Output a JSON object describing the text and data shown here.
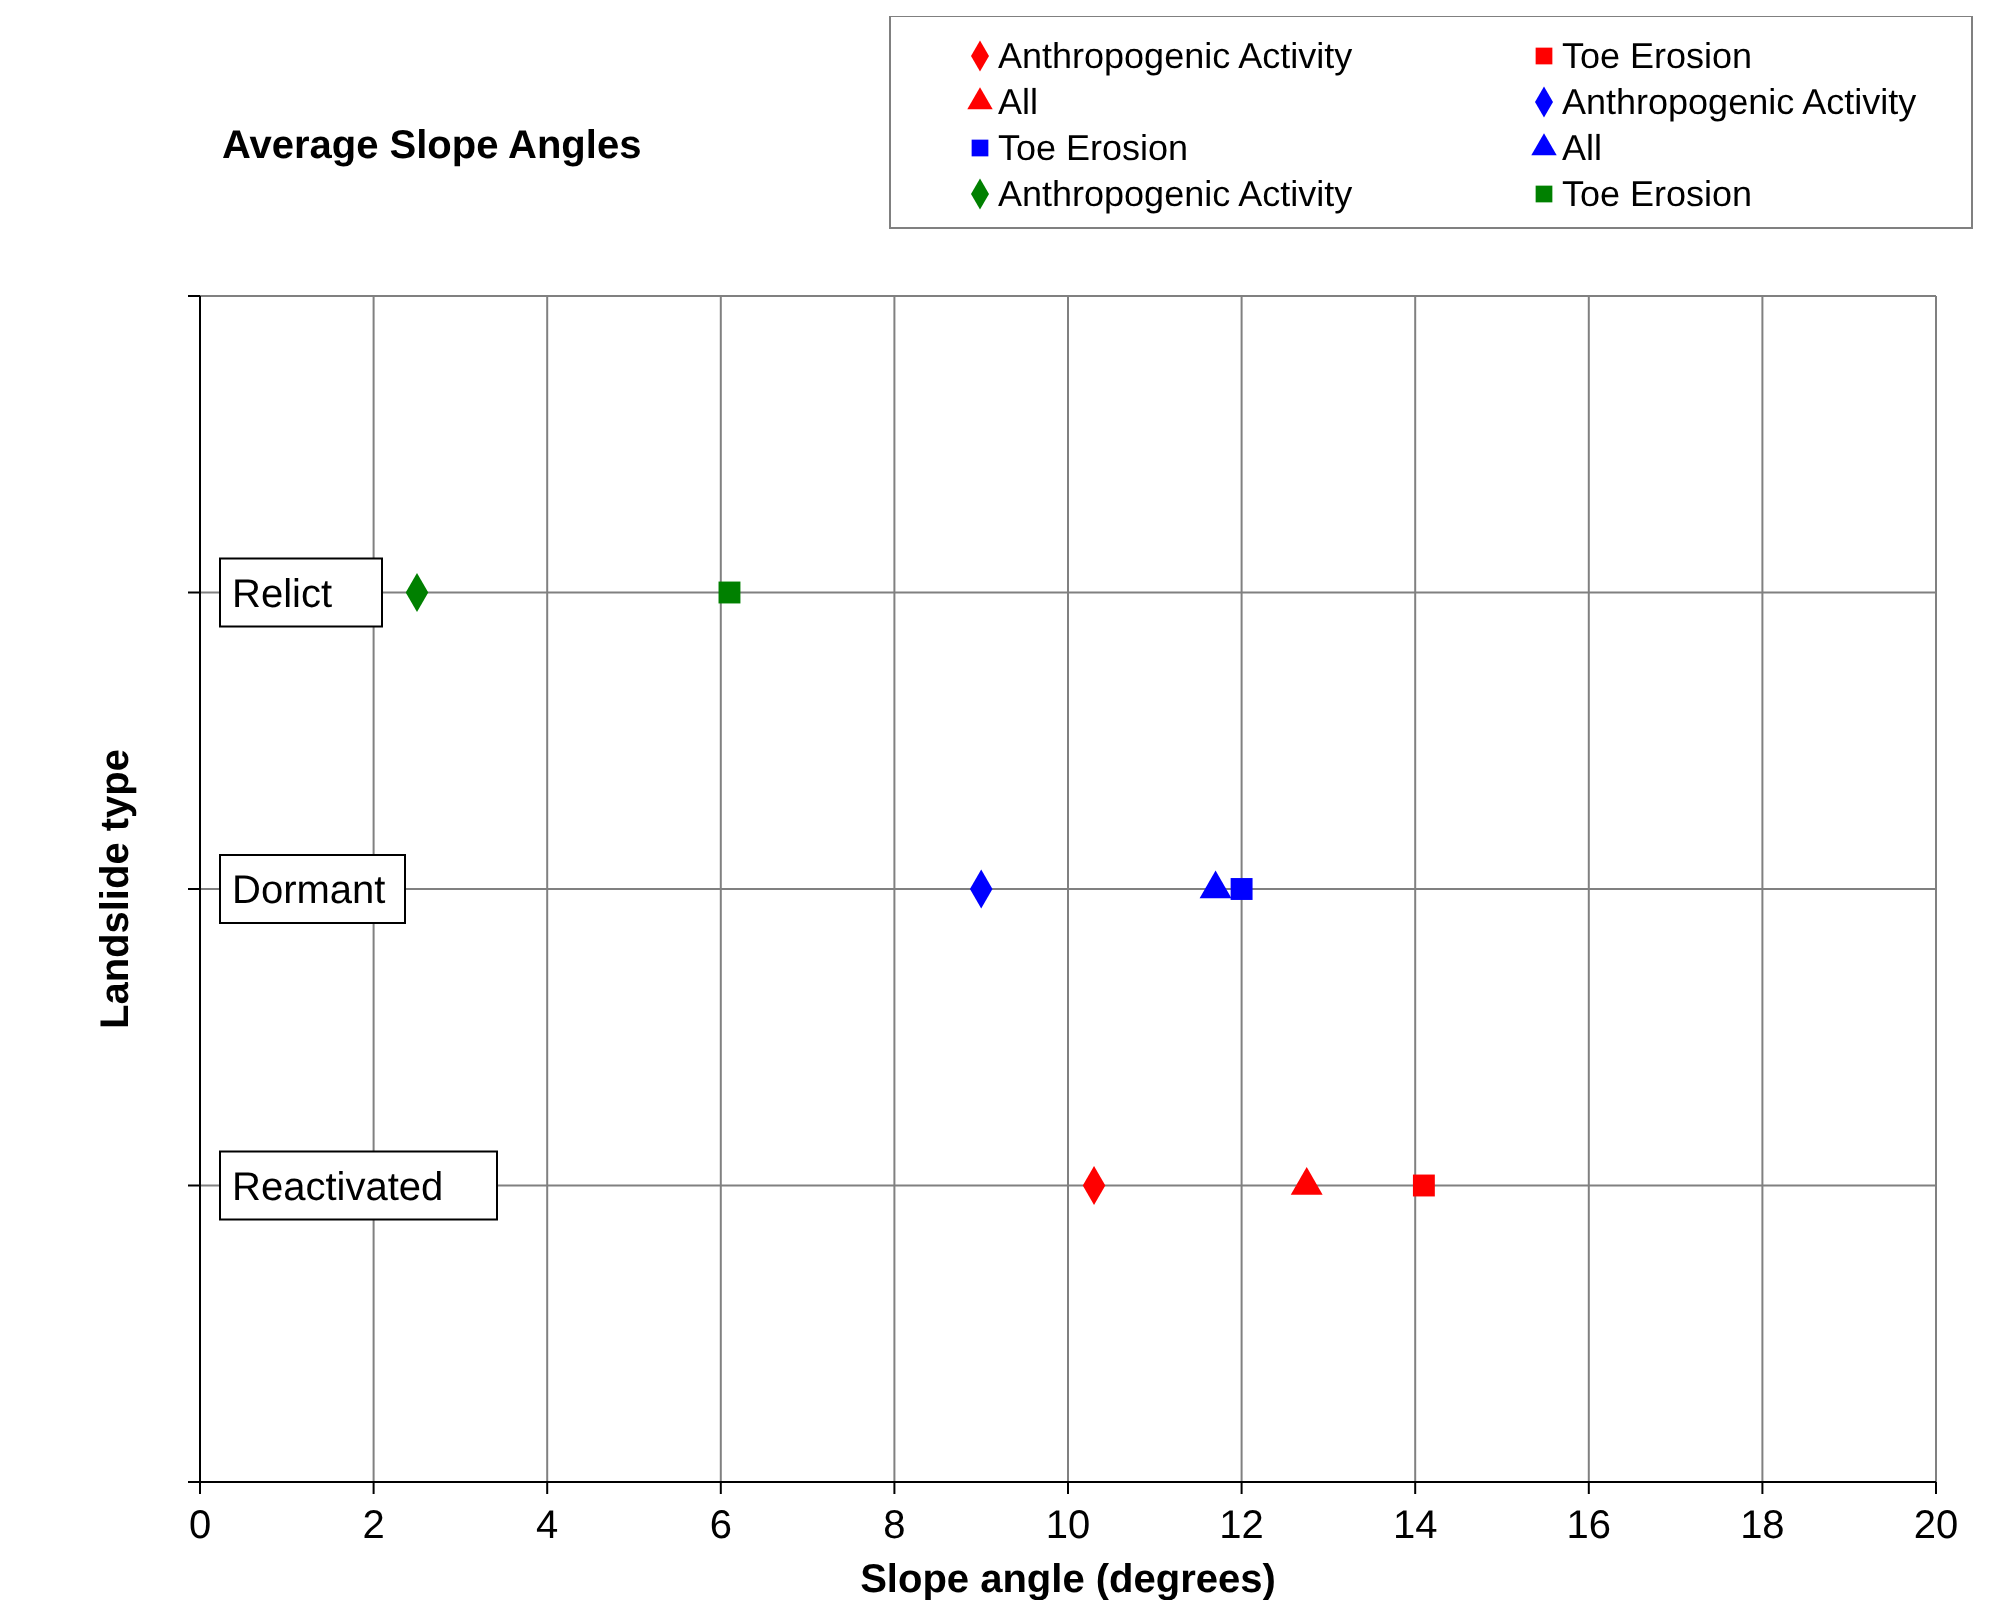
{
  "chart_data": {
    "type": "scatter",
    "orientation": "horizontal",
    "title": "Average Slope Angles",
    "xlabel": "Slope angle (degrees)",
    "ylabel": "Landslide type",
    "categories": [
      "Relict",
      "Dormant",
      "Reactivated"
    ],
    "xlim": [
      0,
      20
    ],
    "xticks": [
      0,
      2,
      4,
      6,
      8,
      10,
      12,
      14,
      16,
      18,
      20
    ],
    "grid": true,
    "legend": "top right",
    "series": [
      {
        "name": "Anthropogenic Activity",
        "color": "#ff0000",
        "marker": "diamond",
        "values": [
          null,
          null,
          10.3
        ]
      },
      {
        "name": "Toe Erosion",
        "color": "#ff0000",
        "marker": "square",
        "values": [
          null,
          null,
          14.1
        ]
      },
      {
        "name": "All",
        "color": "#ff0000",
        "marker": "triangle",
        "values": [
          null,
          null,
          12.75
        ]
      },
      {
        "name": "Anthropogenic Activity",
        "color": "#0000ff",
        "marker": "diamond",
        "values": [
          null,
          9.0,
          null
        ]
      },
      {
        "name": "Toe Erosion",
        "color": "#0000ff",
        "marker": "square",
        "values": [
          null,
          12.0,
          null
        ]
      },
      {
        "name": "All",
        "color": "#0000ff",
        "marker": "triangle",
        "values": [
          null,
          11.7,
          null
        ]
      },
      {
        "name": "Anthropogenic Activity",
        "color": "#008000",
        "marker": "diamond",
        "values": [
          2.5,
          null,
          null
        ]
      },
      {
        "name": "Toe Erosion",
        "color": "#008000",
        "marker": "square",
        "values": [
          6.1,
          null,
          null
        ]
      }
    ]
  }
}
